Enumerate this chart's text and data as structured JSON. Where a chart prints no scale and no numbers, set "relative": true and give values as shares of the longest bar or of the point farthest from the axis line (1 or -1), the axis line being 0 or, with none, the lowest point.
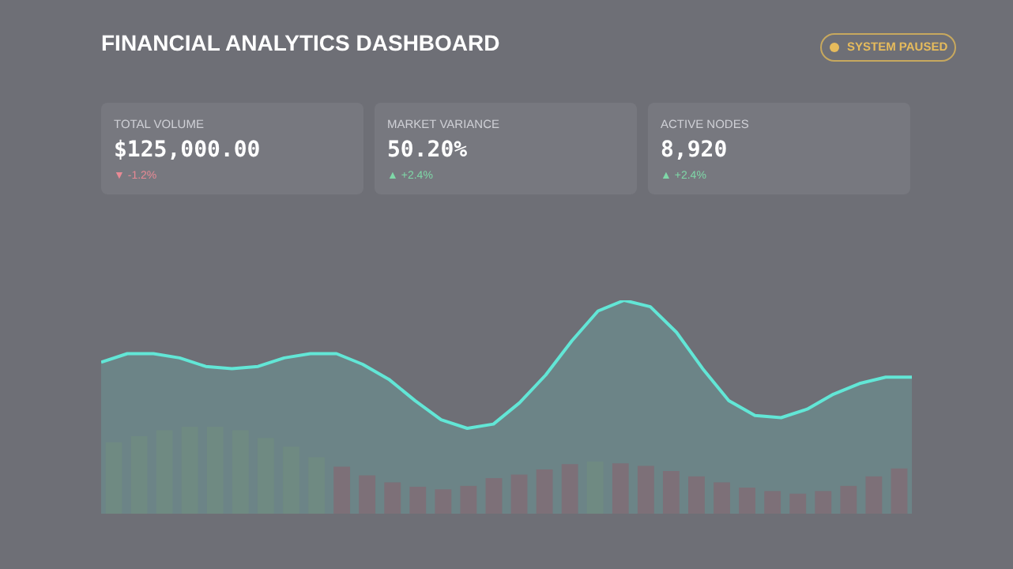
{
  "chart_data": [
    {
      "type": "other",
      "title": "FINANCIAL ANALYTICS DASHBOARD",
      "annotations": [
        "SYSTEM PAUSED",
        "TOTAL VOLUME",
        "$125,000.00",
        "▼ -1.2%",
        "MARKET VARIANCE",
        "50.20%",
        "▲ +2.4%",
        "ACTIVE NODES",
        "8,920",
        "▲ +2.4%"
      ]
    },
    {
      "type": "area",
      "relative": true,
      "legend": false,
      "categories": [
        null,
        null,
        null,
        null,
        null,
        null,
        null,
        null,
        null,
        null,
        null,
        null,
        null,
        null,
        null,
        null,
        null,
        null,
        null,
        null,
        null,
        null,
        null,
        null,
        null,
        null,
        null,
        null,
        null,
        null,
        null,
        null
      ],
      "series": [
        {
          "color": "#62e6d6",
          "values": [
            0.71,
            0.75,
            0.75,
            0.73,
            0.69,
            0.68,
            0.69,
            0.73,
            0.75,
            0.75,
            0.7,
            0.63,
            0.53,
            0.44,
            0.4,
            0.42,
            0.52,
            0.65,
            0.81,
            0.95,
            1,
            0.97,
            0.85,
            0.68,
            0.53,
            0.46,
            0.45,
            0.49,
            0.56,
            0.61,
            0.64,
            0.64
          ]
        }
      ]
    },
    {
      "type": "bar",
      "relative": true,
      "legend": false,
      "categories": [
        null,
        null,
        null,
        null,
        null,
        null,
        null,
        null,
        null,
        null,
        null,
        null,
        null,
        null,
        null,
        null,
        null,
        null,
        null,
        null,
        null,
        null,
        null,
        null,
        null,
        null,
        null,
        null,
        null,
        null,
        null,
        null
      ],
      "series": [
        {
          "colors": [
            "#6f8a82",
            "#6f8a82",
            "#6f8a82",
            "#6f8a82",
            "#6f8a82",
            "#6f8a82",
            "#6f8a82",
            "#6f8a82",
            "#6f8a82",
            "#7d7078",
            "#7d7078",
            "#7d7078",
            "#7d7078",
            "#7d7078",
            "#7d7078",
            "#7d7078",
            "#7d7078",
            "#7d7078",
            "#7d7078",
            "#6f8a82",
            "#7d7078",
            "#7d7078",
            "#7d7078",
            "#7d7078",
            "#7d7078",
            "#7d7078",
            "#7d7078",
            "#7d7078",
            "#7d7078",
            "#7d7078",
            "#7d7078",
            "#7d7078"
          ],
          "values": [
            0.82,
            0.89,
            0.96,
            1,
            1,
            0.96,
            0.87,
            0.77,
            0.65,
            0.54,
            0.44,
            0.36,
            0.31,
            0.28,
            0.32,
            0.41,
            0.45,
            0.51,
            0.57,
            0.6,
            0.58,
            0.55,
            0.49,
            0.43,
            0.36,
            0.3,
            0.26,
            0.23,
            0.26,
            0.32,
            0.43,
            0.52
          ]
        }
      ]
    }
  ]
}
